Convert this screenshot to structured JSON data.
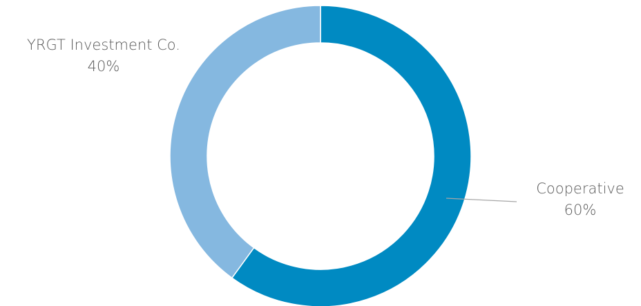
{
  "chart_data": {
    "type": "pie",
    "variant": "donut",
    "title": "",
    "start_angle_deg": 0,
    "direction": "clockwise",
    "slices": [
      {
        "name": "Cooperative",
        "value": 60,
        "value_label": "60%",
        "color": "#008ac2"
      },
      {
        "name": "YRGT Investment Co.",
        "value": 40,
        "value_label": "40%",
        "color": "#85b8e0"
      }
    ],
    "legend": "none"
  }
}
